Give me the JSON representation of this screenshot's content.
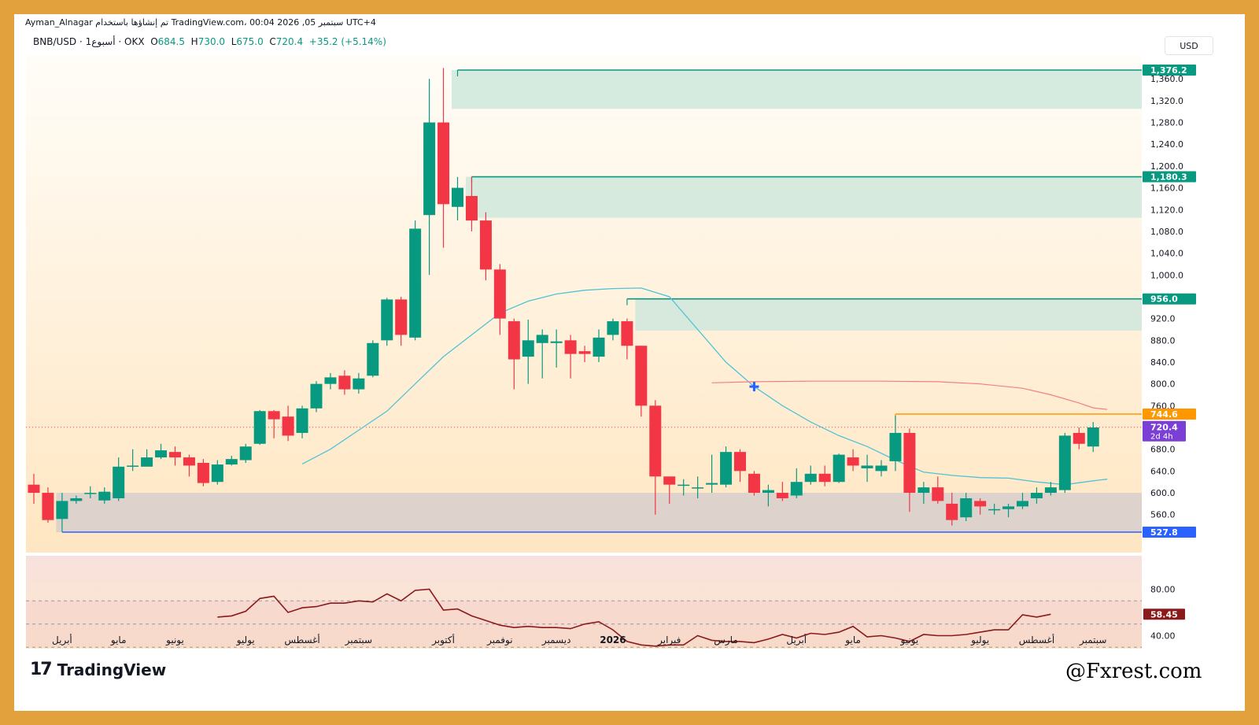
{
  "header": {
    "author": "Ayman_Alnagar",
    "published_text": "تم إنشاؤها باستخدام TradingView.com، 00:04 2026 ,05 سبتمبر UTC+4"
  },
  "symbol": {
    "name": "BNB/USD · 1أسبوع · OKX",
    "open_label": "O",
    "open": "684.5",
    "high_label": "H",
    "high": "730.0",
    "low_label": "L",
    "low": "675.0",
    "close_label": "C",
    "close": "720.4",
    "change": "+35.2 (+5.14%)"
  },
  "currency": "USD",
  "brand": {
    "logo": "17",
    "name": "TradingView"
  },
  "watermark": "@Fxrest.com",
  "colors": {
    "up": "#089981",
    "down": "#f23645",
    "frame": "#e2a13c",
    "zone_green": "#cfe8dc",
    "zone_gray": "#d9cfcc",
    "ma_blue": "#4fc3d7",
    "ma_red": "#f08080",
    "rsi": "#8b1a1a",
    "level_orange": "#ff9800",
    "level_blue": "#2962ff"
  },
  "chart_data": {
    "type": "candlestick",
    "symbol": "BNB/USD",
    "timeframe": "1W",
    "ylim": [
      500,
      1390
    ],
    "y_ticks": [
      560,
      600,
      640,
      680,
      760,
      800,
      840,
      880,
      920,
      1000,
      1040,
      1080,
      1120,
      1160,
      1200,
      1240,
      1280,
      1320,
      1360
    ],
    "x_labels": [
      "أبريل",
      "مايو",
      "يونيو",
      "يوليو",
      "أغسطس",
      "سبتمبر",
      "أكتوبر",
      "نوفمبر",
      "ديسمبر",
      "2026",
      "فبراير",
      "مارس",
      "أبريل",
      "مايو",
      "يونيو",
      "يوليو",
      "أغسطس",
      "سبتمبر"
    ],
    "x_label_index": [
      2,
      6,
      10,
      15,
      19,
      23,
      29,
      33,
      37,
      41,
      45,
      49,
      54,
      58,
      62,
      67,
      71,
      75
    ],
    "candles": [
      [
        615,
        600,
        635,
        580
      ],
      [
        600,
        550,
        610,
        545
      ],
      [
        552,
        585,
        600,
        528
      ],
      [
        585,
        590,
        595,
        580
      ],
      [
        600,
        600,
        612,
        590
      ],
      [
        586,
        602,
        610,
        580
      ],
      [
        590,
        648,
        665,
        585
      ],
      [
        648,
        650,
        680,
        640
      ],
      [
        648,
        665,
        680,
        650
      ],
      [
        665,
        678,
        690,
        662
      ],
      [
        675,
        665,
        685,
        650
      ],
      [
        665,
        650,
        670,
        630
      ],
      [
        655,
        618,
        662,
        612
      ],
      [
        620,
        652,
        660,
        615
      ],
      [
        652,
        662,
        668,
        650
      ],
      [
        660,
        685,
        690,
        655
      ],
      [
        690,
        750,
        752,
        688
      ],
      [
        750,
        735,
        752,
        700
      ],
      [
        740,
        705,
        760,
        695
      ],
      [
        710,
        755,
        760,
        700
      ],
      [
        755,
        800,
        805,
        748
      ],
      [
        800,
        812,
        820,
        790
      ],
      [
        815,
        790,
        825,
        780
      ],
      [
        790,
        810,
        820,
        782
      ],
      [
        815,
        875,
        880,
        812
      ],
      [
        880,
        955,
        958,
        870
      ],
      [
        955,
        890,
        960,
        870
      ],
      [
        885,
        1085,
        1100,
        880
      ],
      [
        1110,
        1280,
        1360,
        1000
      ],
      [
        1280,
        1130,
        1380,
        1050
      ],
      [
        1125,
        1160,
        1180,
        1100
      ],
      [
        1145,
        1100,
        1180,
        1080
      ],
      [
        1100,
        1010,
        1115,
        990
      ],
      [
        1010,
        920,
        1020,
        890
      ],
      [
        915,
        845,
        920,
        790
      ],
      [
        850,
        880,
        918,
        800
      ],
      [
        875,
        890,
        900,
        810
      ],
      [
        875,
        878,
        900,
        830
      ],
      [
        880,
        855,
        890,
        810
      ],
      [
        860,
        855,
        870,
        840
      ],
      [
        850,
        885,
        900,
        840
      ],
      [
        890,
        915,
        920,
        880
      ],
      [
        915,
        870,
        920,
        845
      ],
      [
        870,
        760,
        870,
        740
      ],
      [
        760,
        630,
        770,
        560
      ],
      [
        630,
        615,
        630,
        580
      ],
      [
        615,
        615,
        625,
        595
      ],
      [
        610,
        610,
        630,
        590
      ],
      [
        615,
        618,
        670,
        600
      ],
      [
        615,
        675,
        685,
        610
      ],
      [
        675,
        640,
        680,
        620
      ],
      [
        635,
        600,
        640,
        595
      ],
      [
        600,
        605,
        615,
        575
      ],
      [
        600,
        590,
        620,
        585
      ],
      [
        595,
        620,
        645,
        590
      ],
      [
        620,
        635,
        650,
        615
      ],
      [
        635,
        620,
        650,
        612
      ],
      [
        620,
        670,
        672,
        618
      ],
      [
        665,
        650,
        680,
        640
      ],
      [
        645,
        650,
        670,
        620
      ],
      [
        640,
        650,
        660,
        630
      ],
      [
        658,
        710,
        742,
        640
      ],
      [
        710,
        600,
        718,
        565
      ],
      [
        600,
        610,
        620,
        580
      ],
      [
        610,
        585,
        630,
        580
      ],
      [
        580,
        550,
        600,
        540
      ],
      [
        555,
        590,
        600,
        548
      ],
      [
        585,
        575,
        590,
        560
      ],
      [
        570,
        570,
        580,
        560
      ],
      [
        570,
        575,
        580,
        555
      ],
      [
        575,
        585,
        600,
        570
      ],
      [
        590,
        600,
        610,
        580
      ],
      [
        600,
        610,
        620,
        595
      ],
      [
        605,
        705,
        710,
        600
      ],
      [
        710,
        690,
        720,
        680
      ],
      [
        685,
        720,
        730,
        675
      ]
    ],
    "zones": [
      {
        "top": 1376.2,
        "bottom": 1305,
        "start_index": 30
      },
      {
        "top": 1180.3,
        "bottom": 1105,
        "start_index": 31
      },
      {
        "top": 956.0,
        "bottom": 898,
        "start_index": 43
      },
      {
        "top": 600,
        "bottom": 527.8,
        "start_index": 2
      }
    ],
    "levels": [
      {
        "label": "1,376.2",
        "value": 1376.2,
        "color": "#089981",
        "start_index": 30
      },
      {
        "label": "1,180.3",
        "value": 1180.3,
        "color": "#089981",
        "start_index": 31
      },
      {
        "label": "956.0",
        "value": 956.0,
        "color": "#089981",
        "start_index": 42
      },
      {
        "label": "744.6",
        "value": 744.6,
        "color": "#ff9800",
        "start_index": 61
      },
      {
        "label": "527.8",
        "value": 527.8,
        "color": "#2962ff",
        "start_index": 2
      }
    ],
    "current_price": {
      "label": "720.4",
      "countdown": "2d 4h",
      "value": 720.4,
      "color": "#7b3fd6"
    },
    "ma_short": [
      [
        19,
        653
      ],
      [
        21,
        680
      ],
      [
        23,
        715
      ],
      [
        25,
        750
      ],
      [
        27,
        800
      ],
      [
        29,
        850
      ],
      [
        31,
        890
      ],
      [
        33,
        930
      ],
      [
        35,
        952
      ],
      [
        37,
        965
      ],
      [
        39,
        972
      ],
      [
        41,
        975
      ],
      [
        43,
        976
      ],
      [
        45,
        960
      ],
      [
        47,
        900
      ],
      [
        49,
        840
      ],
      [
        51,
        795
      ],
      [
        53,
        760
      ],
      [
        55,
        730
      ],
      [
        57,
        705
      ],
      [
        59,
        685
      ],
      [
        61,
        660
      ],
      [
        63,
        638
      ],
      [
        65,
        632
      ],
      [
        67,
        628
      ],
      [
        69,
        627
      ],
      [
        71,
        620
      ],
      [
        73,
        615
      ],
      [
        75,
        622
      ],
      [
        76,
        625
      ]
    ],
    "ma_long": [
      [
        48,
        802
      ],
      [
        51,
        804
      ],
      [
        55,
        805
      ],
      [
        60,
        805
      ],
      [
        64,
        804
      ],
      [
        67,
        800
      ],
      [
        70,
        792
      ],
      [
        72,
        780
      ],
      [
        74,
        765
      ],
      [
        75,
        756
      ],
      [
        76,
        753
      ]
    ],
    "marker": {
      "index": 51,
      "value": 795
    },
    "rsi": {
      "ylim": [
        26,
        84
      ],
      "ticks": [
        40,
        80
      ],
      "value_label": "58.45",
      "value": 58.45,
      "upper_band": 70,
      "mid": 50,
      "lower_band": 30,
      "points": [
        [
          13,
          56
        ],
        [
          14,
          57
        ],
        [
          15,
          61
        ],
        [
          16,
          72
        ],
        [
          17,
          74
        ],
        [
          18,
          60
        ],
        [
          19,
          64
        ],
        [
          20,
          65
        ],
        [
          21,
          68
        ],
        [
          22,
          68
        ],
        [
          23,
          70
        ],
        [
          24,
          69
        ],
        [
          25,
          76
        ],
        [
          26,
          70
        ],
        [
          27,
          79
        ],
        [
          28,
          80
        ],
        [
          29,
          62
        ],
        [
          30,
          63
        ],
        [
          31,
          57
        ],
        [
          32,
          53
        ],
        [
          33,
          49
        ],
        [
          34,
          47
        ],
        [
          35,
          48
        ],
        [
          36,
          47
        ],
        [
          37,
          47
        ],
        [
          38,
          46
        ],
        [
          39,
          50
        ],
        [
          40,
          52
        ],
        [
          41,
          45
        ],
        [
          42,
          35
        ],
        [
          43,
          32
        ],
        [
          44,
          31
        ],
        [
          45,
          32
        ],
        [
          46,
          32
        ],
        [
          47,
          40
        ],
        [
          48,
          36
        ],
        [
          49,
          35
        ],
        [
          50,
          35
        ],
        [
          51,
          34
        ],
        [
          52,
          37
        ],
        [
          53,
          41
        ],
        [
          54,
          38
        ],
        [
          55,
          42
        ],
        [
          56,
          41
        ],
        [
          57,
          43
        ],
        [
          58,
          48
        ],
        [
          59,
          39
        ],
        [
          60,
          40
        ],
        [
          61,
          38
        ],
        [
          62,
          35
        ],
        [
          63,
          41
        ],
        [
          64,
          40
        ],
        [
          65,
          40
        ],
        [
          66,
          41
        ],
        [
          67,
          43
        ],
        [
          68,
          45
        ],
        [
          69,
          45
        ],
        [
          70,
          58
        ],
        [
          71,
          56
        ],
        [
          72,
          58.45
        ]
      ]
    }
  }
}
